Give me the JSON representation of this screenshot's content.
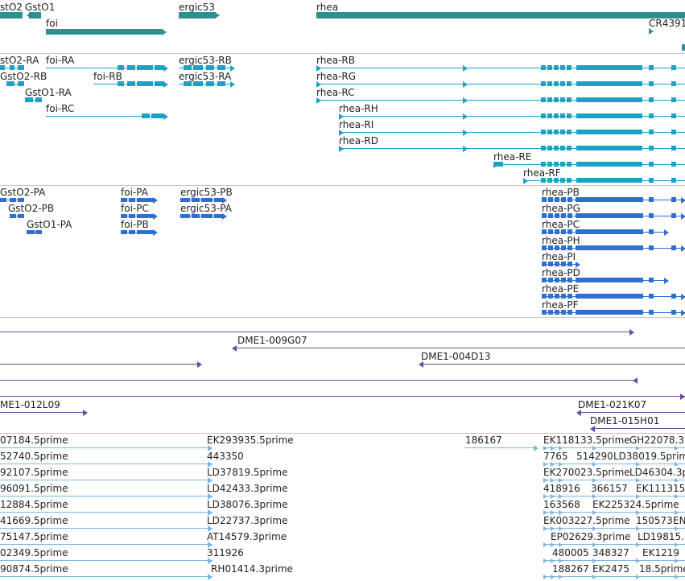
{
  "colors": {
    "gene": "#2f8f8e",
    "transcript": "#1aa3c4",
    "protein": "#2f6fcf",
    "clone": "#6b4c9a",
    "est": "#7fb6dc",
    "separator": "#c8c8c8",
    "text": "#222222"
  },
  "tracks": {
    "genes": {
      "labels": [
        "stO2",
        "GstO1",
        "foi",
        "ergic53",
        "rhea",
        "CR4391"
      ]
    },
    "transcripts": {
      "labels": [
        "stO2-RA",
        "foi-RA",
        "GstO2-RB",
        "foi-RB",
        "GstO1-RA",
        "foi-RC",
        "ergic53-RB",
        "ergic53-RA",
        "rhea-RB",
        "rhea-RG",
        "rhea-RC",
        "rhea-RH",
        "rhea-RI",
        "rhea-RD",
        "rhea-RE",
        "rhea-RF"
      ]
    },
    "proteins": {
      "labels": [
        "GstO2-PA",
        "GstO2-PB",
        "GstO1-PA",
        "foi-PA",
        "foi-PC",
        "foi-PB",
        "ergic53-PB",
        "ergic53-PA",
        "rhea-PB",
        "rhea-PG",
        "rhea-PC",
        "rhea-PH",
        "rhea-PI",
        "rhea-PD",
        "rhea-PE",
        "rhea-PF"
      ]
    },
    "clones": {
      "labels": [
        "DME1-009G07",
        "DME1-004D13",
        "ME1-012L09",
        "DME1-021K07",
        "DME1-015H01"
      ]
    },
    "ests": {
      "labels": [
        "07184.5prime",
        "52740.5prime",
        "92107.5prime",
        "96091.5prime",
        "12884.5prime",
        "41669.5prime",
        "75147.5prime",
        "02349.5prime",
        "90874.5prime",
        "EK293935.5prime",
        "443350",
        "LD37819.5prime",
        "LD42433.3prime",
        "LD38076.3prime",
        "LD22737.3prime",
        "AT14579.3prime",
        "311926",
        "RH01414.3prime",
        "186167",
        "EK118133.5prime",
        "GH22078.3",
        "7765",
        "514290",
        "LD38019.5prime",
        "EK270023.5prime",
        "LD46304.3p",
        "418916",
        "366157",
        "EK111315",
        "163568",
        "EK225324.5prime",
        "EK003227.5prime",
        "150573",
        "EN",
        "EP02629.3prime",
        "LD19815.",
        "480005",
        "348327",
        "EK1219",
        "188267",
        "EK2475",
        "18.5prime"
      ]
    }
  }
}
